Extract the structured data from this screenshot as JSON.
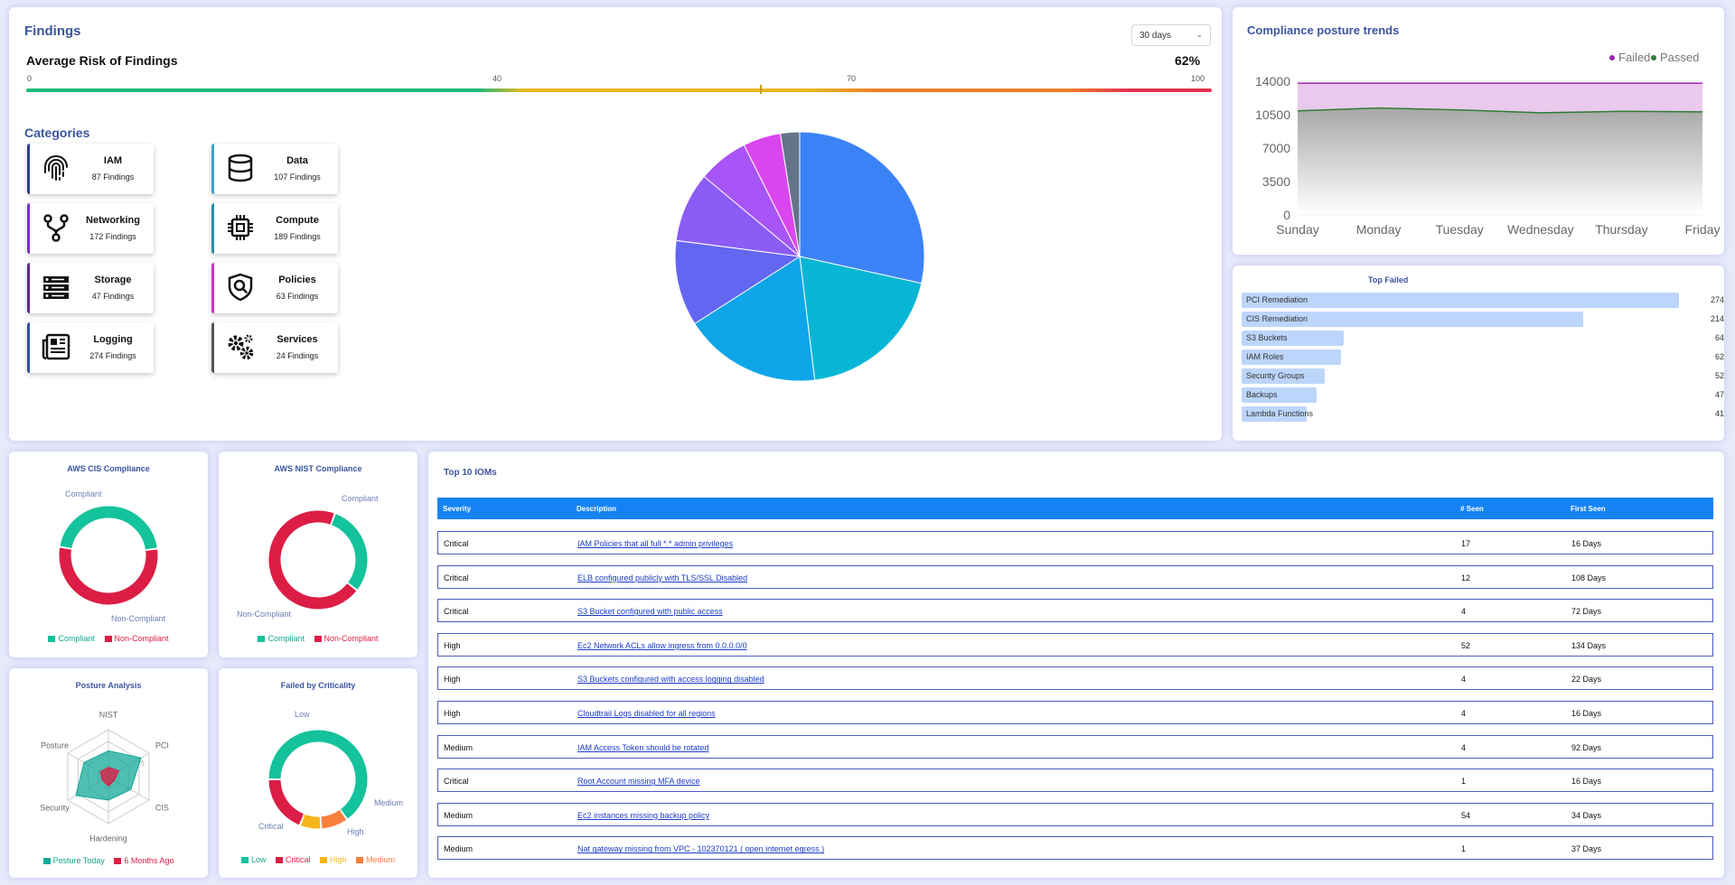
{
  "findings": {
    "title": "Findings",
    "range_select": "30 days",
    "risk": {
      "title": "Average Risk of Findings",
      "percent_label": "62%",
      "value": 62,
      "ticks": [
        "0",
        "40",
        "70",
        "100"
      ]
    },
    "categories_title": "Categories",
    "categories": [
      {
        "name": "IAM",
        "count": "87 Findings",
        "icon": "fingerprint-icon",
        "color": "#2c3e8f"
      },
      {
        "name": "Data",
        "count": "107 Findings",
        "icon": "database-icon",
        "color": "#3aa3d6"
      },
      {
        "name": "Networking",
        "count": "172 Findings",
        "icon": "network-icon",
        "color": "#7b2fd0"
      },
      {
        "name": "Compute",
        "count": "189 Findings",
        "icon": "cpu-icon",
        "color": "#2a8fa8"
      },
      {
        "name": "Storage",
        "count": "47 Findings",
        "icon": "server-icon",
        "color": "#5b2a8f"
      },
      {
        "name": "Policies",
        "count": "63 Findings",
        "icon": "shield-search-icon",
        "color": "#d42fc4"
      },
      {
        "name": "Logging",
        "count": "274 Findings",
        "icon": "newspaper-icon",
        "color": "#2c4f9f"
      },
      {
        "name": "Services",
        "count": "24 Findings",
        "icon": "gears-icon",
        "color": "#555"
      }
    ],
    "pie": {
      "type": "pie",
      "values": [
        274,
        189,
        172,
        107,
        87,
        63,
        47,
        24
      ],
      "colors": [
        "#3b82f6",
        "#06b6d4",
        "#0ea5e9",
        "#6366f1",
        "#8b5cf6",
        "#a855f7",
        "#d946ef",
        "#64748b"
      ]
    }
  },
  "trends": {
    "title": "Compliance posture trends",
    "chart_data": {
      "type": "area",
      "x": [
        "Sunday",
        "Monday",
        "Tuesday",
        "Wednesday",
        "Thursday",
        "Friday"
      ],
      "yticks": [
        "14000",
        "10500",
        "7000",
        "3500",
        "0"
      ],
      "ylim": [
        0,
        14000
      ],
      "series": [
        {
          "name": "Failed",
          "color": "#9c27b0",
          "values": [
            13800,
            13800,
            13800,
            13800,
            13800,
            13800
          ]
        },
        {
          "name": "Passed",
          "color": "#2e7d32",
          "values": [
            10900,
            11200,
            11000,
            10700,
            10850,
            10800
          ]
        }
      ],
      "legend": "top-right"
    }
  },
  "top_failed": {
    "title": "Top Failed",
    "chart_data": {
      "type": "bar",
      "categories": [
        "PCI Remediation",
        "CIS Remediation",
        "S3 Buckets",
        "IAM Roles",
        "Security Groups",
        "Backups",
        "Lambda Functions"
      ],
      "values": [
        274,
        214,
        64,
        62,
        52,
        47,
        41
      ],
      "value_labels": [
        "274",
        "214",
        "64",
        "62",
        "52",
        "47",
        "41"
      ]
    }
  },
  "cis": {
    "title": "AWS CIS Compliance",
    "labels": {
      "a": "Compliant",
      "b": "Non-Compliant"
    },
    "values": [
      45,
      55
    ],
    "colors": [
      "#14c29b",
      "#dc1d45"
    ],
    "legend": [
      "Compliant",
      "Non-Compliant"
    ]
  },
  "nist": {
    "title": "AWS NIST Compliance",
    "labels": {
      "a": "Compliant",
      "b": "Non-Compliant"
    },
    "values": [
      30,
      70
    ],
    "colors": [
      "#14c29b",
      "#dc1d45"
    ],
    "legend": [
      "Compliant",
      "Non-Compliant"
    ]
  },
  "posture": {
    "title": "Posture Analysis",
    "axes": [
      "NIST",
      "PCI",
      "CIS",
      "Hardening",
      "Security",
      "Posture"
    ],
    "ring_label": "75",
    "series": [
      {
        "name": "Posture Today",
        "color": "#14a89a",
        "values": [
          0.55,
          0.8,
          0.55,
          0.5,
          0.8,
          0.6
        ]
      },
      {
        "name": "6 Months Ago",
        "color": "#dc1d45",
        "values": [
          0.2,
          0.25,
          0.15,
          0.2,
          0.15,
          0.2
        ]
      }
    ],
    "legend": [
      "Posture Today",
      "6 Months Ago"
    ]
  },
  "criticality": {
    "title": "Failed by Criticality",
    "labels": {
      "low": "Low",
      "medium": "Medium",
      "high": "High",
      "critical": "Critical"
    },
    "values": [
      65,
      9,
      7,
      19
    ],
    "order": [
      "Low",
      "Medium",
      "High",
      "Critical"
    ],
    "colors": [
      "#14c29b",
      "#f97f3c",
      "#f5b61c",
      "#dc1d45"
    ],
    "legend": [
      "Low",
      "Critical",
      "High",
      "Medium"
    ]
  },
  "ioms": {
    "title": "Top 10 IOMs",
    "headers": {
      "severity": "Severity",
      "description": "Description",
      "seen": "# Seen",
      "first": "First Seen"
    },
    "rows": [
      {
        "severity": "Critical",
        "description": "IAM Policies that all full *.* admin privileges",
        "seen": "17",
        "first": "16 Days"
      },
      {
        "severity": "Critical",
        "description": "ELB configured publicly with TLS/SSL Disabled",
        "seen": "12",
        "first": "108 Days"
      },
      {
        "severity": "Critical",
        "description": "S3 Bucket configured with public access",
        "seen": "4",
        "first": "72 Days"
      },
      {
        "severity": "High",
        "description": "Ec2 Network ACLs allow ingress from 0.0.0.0/0",
        "seen": "52",
        "first": "134 Days"
      },
      {
        "severity": "High",
        "description": "S3 Buckets configured with access logging disabled",
        "seen": "4",
        "first": "22 Days"
      },
      {
        "severity": "High",
        "description": "Cloudtrail Logs disabled for all regions",
        "seen": "4",
        "first": "16 Days"
      },
      {
        "severity": "Medium",
        "description": "IAM Access Token should be rotated",
        "seen": "4",
        "first": "92 Days"
      },
      {
        "severity": "Critical",
        "description": "Root Account missing MFA device",
        "seen": "1",
        "first": "16 Days"
      },
      {
        "severity": "Medium",
        "description": "Ec2 instances missing backup policy",
        "seen": "54",
        "first": "34 Days"
      },
      {
        "severity": "Medium",
        "description": "Nat gateway missing from VPC - 102370121 ( open internet egress )",
        "seen": "1",
        "first": "37 Days"
      }
    ]
  }
}
